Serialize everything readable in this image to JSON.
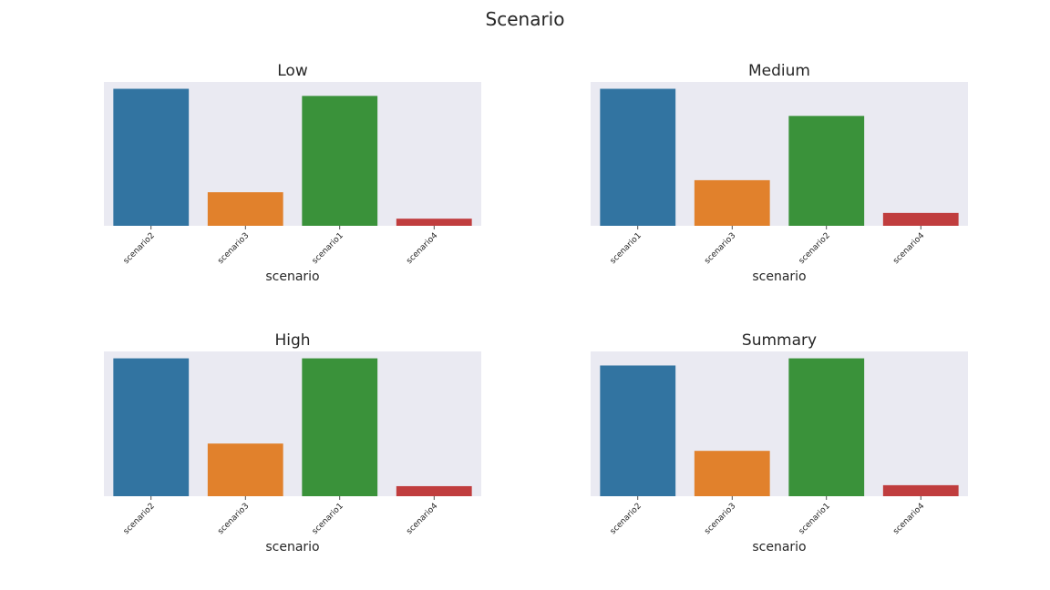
{
  "figure": {
    "suptitle": "Scenario"
  },
  "chart_data": [
    {
      "type": "bar",
      "title": "Low",
      "xlabel": "scenario",
      "ylabel": "",
      "categories": [
        "scenario2",
        "scenario3",
        "scenario1",
        "scenario4"
      ],
      "values": [
        1.0,
        0.245,
        0.948,
        0.052
      ],
      "colors": [
        "#3274a1",
        "#e1812c",
        "#3a923a",
        "#c03d3e"
      ],
      "ylim": [
        0,
        1.05
      ],
      "yticks_visible": false,
      "grid": false,
      "legend": "none"
    },
    {
      "type": "bar",
      "title": "Medium",
      "xlabel": "scenario",
      "ylabel": "",
      "categories": [
        "scenario1",
        "scenario3",
        "scenario2",
        "scenario4"
      ],
      "values": [
        1.0,
        0.333,
        0.802,
        0.094
      ],
      "colors": [
        "#3274a1",
        "#e1812c",
        "#3a923a",
        "#c03d3e"
      ],
      "ylim": [
        0,
        1.05
      ],
      "yticks_visible": false,
      "grid": false,
      "legend": "none"
    },
    {
      "type": "bar",
      "title": "High",
      "xlabel": "scenario",
      "ylabel": "",
      "categories": [
        "scenario2",
        "scenario3",
        "scenario1",
        "scenario4"
      ],
      "values": [
        1.0,
        0.382,
        1.0,
        0.073
      ],
      "colors": [
        "#3274a1",
        "#e1812c",
        "#3a923a",
        "#c03d3e"
      ],
      "ylim": [
        0,
        1.05
      ],
      "yticks_visible": false,
      "grid": false,
      "legend": "none"
    },
    {
      "type": "bar",
      "title": "Summary",
      "xlabel": "scenario",
      "ylabel": "",
      "categories": [
        "scenario2",
        "scenario3",
        "scenario1",
        "scenario4"
      ],
      "values": [
        0.948,
        0.329,
        1.0,
        0.08
      ],
      "colors": [
        "#3274a1",
        "#e1812c",
        "#3a923a",
        "#c03d3e"
      ],
      "ylim": [
        0,
        1.05
      ],
      "yticks_visible": false,
      "grid": false,
      "legend": "none"
    }
  ]
}
